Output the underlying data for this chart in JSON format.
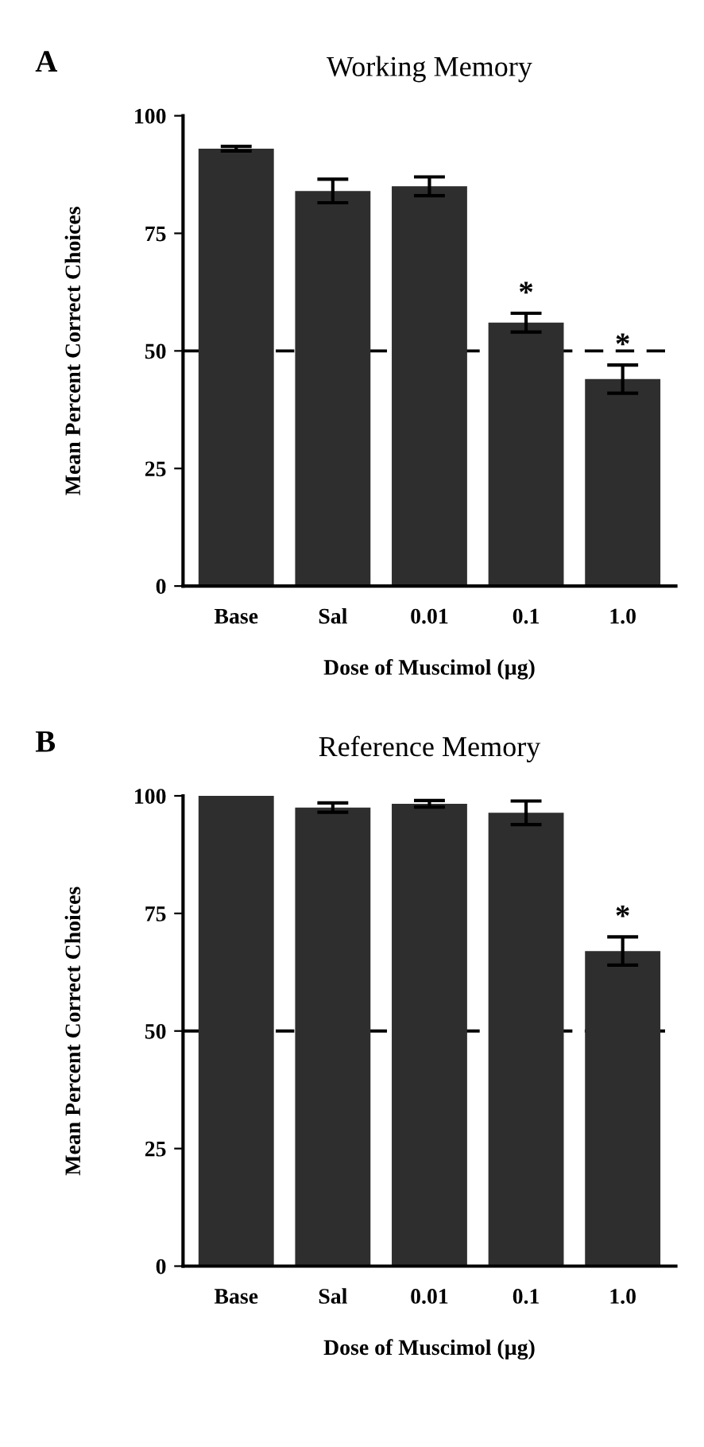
{
  "chart_data": [
    {
      "type": "bar",
      "title": "Working Memory",
      "xlabel": "Dose of Muscimol (µg)",
      "ylabel": "Mean Percent Correct Choices",
      "categories": [
        "Base",
        "Sal",
        "0.01",
        "0.1",
        "1.0"
      ],
      "values": [
        93,
        84,
        85,
        56,
        44
      ],
      "errors": [
        0.5,
        2.5,
        2,
        2,
        3
      ],
      "color": "#2e2e2e",
      "ylim": [
        0,
        100
      ],
      "yticks": [
        0,
        25,
        50,
        75,
        100
      ],
      "grid": false,
      "ref_lines": [
        {
          "axis": "y",
          "value": 50,
          "color": "#000000",
          "line_style": "dashed"
        }
      ],
      "annotations": [
        "A",
        {
          "text": "*",
          "x": "0.1",
          "y": 58
        },
        {
          "text": "*",
          "x": "1.0",
          "y": 47
        }
      ]
    },
    {
      "type": "bar",
      "title": "Reference Memory",
      "xlabel": "Dose of Muscimol (µg)",
      "ylabel": "Mean Percent Correct Choices",
      "categories": [
        "Base",
        "Sal",
        "0.01",
        "0.1",
        "1.0"
      ],
      "values": [
        100,
        97.5,
        98.3,
        96.4,
        67
      ],
      "errors": [
        null,
        1,
        0.7,
        2.5,
        3
      ],
      "color": "#2e2e2e",
      "ylim": [
        0,
        100
      ],
      "yticks": [
        0,
        25,
        50,
        75,
        100
      ],
      "grid": false,
      "ref_lines": [
        {
          "axis": "y",
          "value": 50,
          "color": "#000000",
          "line_style": "dashed"
        }
      ],
      "annotations": [
        "B",
        {
          "text": "*",
          "x": "1.0",
          "y": 70
        }
      ]
    }
  ]
}
